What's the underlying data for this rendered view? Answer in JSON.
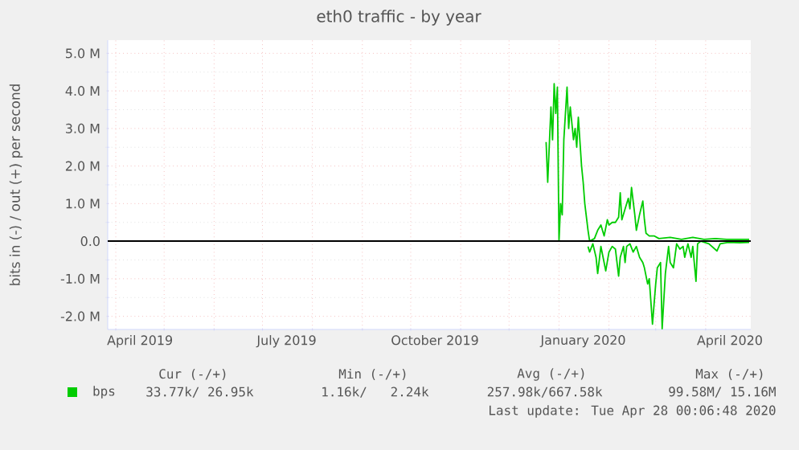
{
  "chart_data": {
    "type": "line",
    "title": "eth0 traffic - by year",
    "ylabel": "bits in (-) / out (+) per second",
    "xlim": [
      "2019-03-27",
      "2020-04-29"
    ],
    "ylim": [
      -2.35,
      5.35
    ],
    "xticks": [
      {
        "value": "2019-04-16",
        "label": "April 2019"
      },
      {
        "value": "2019-07-16",
        "label": "July 2019"
      },
      {
        "value": "2019-10-16",
        "label": "October 2019"
      },
      {
        "value": "2020-01-16",
        "label": "January 2020"
      },
      {
        "value": "2020-04-16",
        "label": "April 2020"
      },
      {
        "value": "2019-04-01",
        "label": null
      },
      {
        "value": "2019-05-01",
        "label": null
      },
      {
        "value": "2019-06-01",
        "label": null
      },
      {
        "value": "2019-07-01",
        "label": null
      },
      {
        "value": "2019-08-01",
        "label": null
      },
      {
        "value": "2019-09-01",
        "label": null
      },
      {
        "value": "2019-10-01",
        "label": null
      },
      {
        "value": "2019-11-01",
        "label": null
      },
      {
        "value": "2019-12-01",
        "label": null
      },
      {
        "value": "2020-01-01",
        "label": null
      },
      {
        "value": "2020-02-01",
        "label": null
      },
      {
        "value": "2020-03-01",
        "label": null
      },
      {
        "value": "2020-04-01",
        "label": null
      }
    ],
    "yticks": [
      {
        "value": -2,
        "label": "-2.0 M"
      },
      {
        "value": -1,
        "label": "-1.0 M"
      },
      {
        "value": 0,
        "label": "0.0"
      },
      {
        "value": 1,
        "label": "1.0 M"
      },
      {
        "value": 2,
        "label": "2.0 M"
      },
      {
        "value": 3,
        "label": "3.0 M"
      },
      {
        "value": 4,
        "label": "4.0 M"
      },
      {
        "value": 5,
        "label": "5.0 M"
      }
    ],
    "grid": true,
    "legend": "bottom left",
    "ref_lines": [
      {
        "axis": "y",
        "value": 0,
        "color": "#000000"
      }
    ],
    "annotations": [
      "Cur (-/+)",
      "Min (-/+)",
      "Avg (-/+)",
      "Max (-/+)",
      "33.77k/ 26.95k",
      "1.16k/   2.24k",
      "257.98k/667.58k",
      "99.58M/ 15.16M",
      "Last update: Tue Apr 28 00:06:48 2020"
    ],
    "series": [
      {
        "name": "bps",
        "color": "#00cc00",
        "x": [
          "2019-12-24",
          "2019-12-25",
          "2019-12-27",
          "2019-12-28",
          "2019-12-29",
          "2019-12-30",
          "2019-12-31",
          "2020-01-01",
          "2020-01-02",
          "2020-01-03",
          "2020-01-04",
          "2020-01-06",
          "2020-01-07",
          "2020-01-08",
          "2020-01-10",
          "2020-01-11",
          "2020-01-12",
          "2020-01-13",
          "2020-01-15",
          "2020-01-16",
          "2020-01-17",
          "2020-01-19",
          "2020-01-20",
          "2020-01-23",
          "2020-01-25",
          "2020-01-27",
          "2020-01-29",
          "2020-01-31",
          "2020-02-01",
          "2020-02-03",
          "2020-02-05",
          "2020-02-07",
          "2020-02-08",
          "2020-02-09",
          "2020-02-11",
          "2020-02-13",
          "2020-02-14",
          "2020-02-15",
          "2020-02-17",
          "2020-02-18",
          "2020-02-20",
          "2020-02-22",
          "2020-02-23",
          "2020-02-24",
          "2020-02-26",
          "2020-02-29",
          "2020-03-03",
          "2020-03-10",
          "2020-03-17",
          "2020-03-24",
          "2020-03-31",
          "2020-04-07",
          "2020-04-14",
          "2020-04-21",
          "2020-04-28"
        ],
        "values": [
          2.64,
          1.57,
          3.57,
          2.7,
          4.19,
          3.4,
          4.1,
          0,
          1.0,
          0.7,
          2.7,
          4.1,
          3.0,
          3.57,
          2.7,
          3.0,
          2.5,
          3.3,
          2.0,
          1.57,
          1.0,
          0.29,
          0,
          0.07,
          0.29,
          0.43,
          0.14,
          0.57,
          0.43,
          0.5,
          0.5,
          0.64,
          1.29,
          0.57,
          0.86,
          1.14,
          0.86,
          1.43,
          0.71,
          0.29,
          0.71,
          1.07,
          0.57,
          0.21,
          0.14,
          0.14,
          0.07,
          0.1,
          0.05,
          0.1,
          0.05,
          0.07,
          0.05,
          0.05,
          0.05
        ]
      },
      {
        "color": "#00cc00",
        "x": [
          "2020-01-19",
          "2020-01-20",
          "2020-01-22",
          "2020-01-24",
          "2020-01-25",
          "2020-01-27",
          "2020-01-29",
          "2020-01-30",
          "2020-02-01",
          "2020-02-03",
          "2020-02-05",
          "2020-02-07",
          "2020-02-08",
          "2020-02-10",
          "2020-02-11",
          "2020-02-12",
          "2020-02-14",
          "2020-02-16",
          "2020-02-18",
          "2020-02-20",
          "2020-02-22",
          "2020-02-23",
          "2020-02-25",
          "2020-02-26",
          "2020-02-28",
          "2020-03-01",
          "2020-03-02",
          "2020-03-04",
          "2020-03-05",
          "2020-03-07",
          "2020-03-09",
          "2020-03-10",
          "2020-03-12",
          "2020-03-14",
          "2020-03-16",
          "2020-03-18",
          "2020-03-19",
          "2020-03-21",
          "2020-03-23",
          "2020-03-24",
          "2020-03-26",
          "2020-03-27",
          "2020-03-29",
          "2020-04-03",
          "2020-04-08",
          "2020-04-10",
          "2020-04-15",
          "2020-04-22",
          "2020-04-28"
        ],
        "values": [
          -0.14,
          -0.29,
          -0.07,
          -0.43,
          -0.86,
          -0.14,
          -0.57,
          -0.79,
          -0.29,
          -0.14,
          -0.21,
          -0.93,
          -0.43,
          -0.14,
          -0.57,
          -0.14,
          -0.07,
          -0.29,
          -0.14,
          -0.43,
          -0.57,
          -0.71,
          -1.14,
          -1.0,
          -2.21,
          -1.14,
          -0.71,
          -0.57,
          -2.33,
          -0.86,
          -0.14,
          -0.57,
          -0.71,
          -0.07,
          -0.21,
          -0.14,
          -0.43,
          -0.07,
          -0.43,
          -0.14,
          -1.07,
          -0.07,
          0,
          -0.07,
          -0.26,
          -0.07,
          -0.03,
          -0.04,
          -0.03
        ]
      }
    ]
  }
}
